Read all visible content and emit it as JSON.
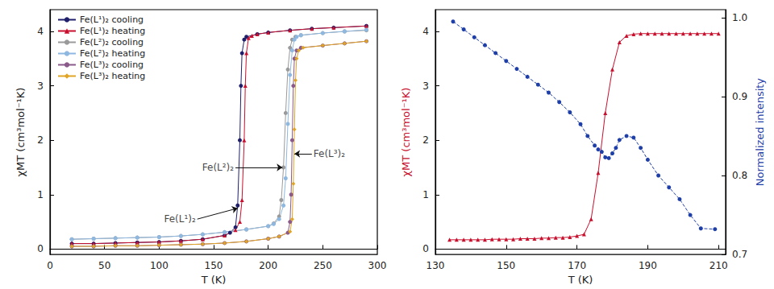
{
  "chart_data": [
    {
      "type": "line",
      "xlabel": "T (K)",
      "ylabel": "χMT (cm³mol⁻¹K)",
      "xlim": [
        0,
        300
      ],
      "xticks": [
        0,
        50,
        100,
        150,
        200,
        250,
        300
      ],
      "ylim": [
        -0.1,
        4.4
      ],
      "yticks": [
        0,
        1,
        2,
        3,
        4
      ],
      "grid": false,
      "legend": "upper left",
      "series": [
        {
          "name": "Fe(L¹)₂ cooling",
          "color": "#1f1f6b",
          "marker": "circle",
          "line_style": "solid",
          "x": [
            20,
            40,
            60,
            80,
            100,
            120,
            140,
            160,
            165,
            170,
            172,
            174,
            175,
            176,
            178,
            180,
            190,
            200,
            220,
            240,
            260,
            290
          ],
          "values": [
            0.1,
            0.1,
            0.11,
            0.12,
            0.13,
            0.15,
            0.18,
            0.25,
            0.3,
            0.4,
            0.8,
            2.0,
            3.0,
            3.6,
            3.85,
            3.9,
            3.95,
            3.98,
            4.02,
            4.05,
            4.07,
            4.1
          ]
        },
        {
          "name": "Fe(L¹)₂ heating",
          "color": "#c8102e",
          "marker": "triangle",
          "line_style": "solid",
          "x": [
            20,
            40,
            60,
            80,
            100,
            120,
            140,
            160,
            170,
            174,
            176,
            178,
            179,
            180,
            182,
            185,
            190,
            200,
            220,
            240,
            260,
            290
          ],
          "values": [
            0.1,
            0.1,
            0.11,
            0.12,
            0.13,
            0.15,
            0.18,
            0.25,
            0.35,
            0.5,
            0.9,
            2.0,
            3.0,
            3.6,
            3.88,
            3.92,
            3.95,
            3.98,
            4.02,
            4.05,
            4.07,
            4.1
          ]
        },
        {
          "name": "Fe(L²)₂ cooling",
          "color": "#9a9a9a",
          "marker": "circle",
          "line_style": "solid",
          "x": [
            20,
            40,
            60,
            80,
            100,
            120,
            140,
            160,
            180,
            200,
            205,
            210,
            212,
            214,
            216,
            218,
            220,
            222,
            225,
            230,
            250,
            270,
            290
          ],
          "values": [
            0.18,
            0.19,
            0.2,
            0.21,
            0.22,
            0.24,
            0.27,
            0.31,
            0.36,
            0.42,
            0.47,
            0.6,
            0.9,
            1.5,
            2.5,
            3.3,
            3.7,
            3.85,
            3.9,
            3.93,
            3.97,
            4.0,
            4.02
          ]
        },
        {
          "name": "Fe(L²)₂ heating",
          "color": "#8fb8e0",
          "marker": "circle",
          "line_style": "solid",
          "x": [
            20,
            40,
            60,
            80,
            100,
            120,
            140,
            160,
            180,
            200,
            205,
            210,
            214,
            216,
            218,
            220,
            222,
            224,
            226,
            230,
            250,
            270,
            290
          ],
          "values": [
            0.18,
            0.19,
            0.2,
            0.21,
            0.22,
            0.24,
            0.27,
            0.31,
            0.36,
            0.42,
            0.46,
            0.55,
            0.8,
            1.3,
            2.3,
            3.2,
            3.65,
            3.85,
            3.9,
            3.93,
            3.97,
            4.0,
            4.03
          ]
        },
        {
          "name": "Fe(L³)₂ cooling",
          "color": "#8a5a8a",
          "marker": "circle",
          "line_style": "solid",
          "x": [
            20,
            40,
            60,
            80,
            100,
            120,
            140,
            160,
            180,
            200,
            210,
            218,
            220,
            221,
            222,
            223,
            224,
            226,
            230,
            250,
            270,
            290
          ],
          "values": [
            0.05,
            0.05,
            0.06,
            0.06,
            0.07,
            0.08,
            0.09,
            0.11,
            0.14,
            0.19,
            0.23,
            0.3,
            0.5,
            1.0,
            2.0,
            3.0,
            3.5,
            3.65,
            3.7,
            3.74,
            3.78,
            3.82
          ]
        },
        {
          "name": "Fe(L³)₂ heating",
          "color": "#e0a526",
          "marker": "diamond",
          "line_style": "solid",
          "x": [
            20,
            40,
            60,
            80,
            100,
            120,
            140,
            160,
            180,
            200,
            210,
            220,
            222,
            223,
            224,
            225,
            226,
            228,
            232,
            250,
            270,
            290
          ],
          "values": [
            0.05,
            0.05,
            0.06,
            0.06,
            0.07,
            0.08,
            0.09,
            0.11,
            0.14,
            0.19,
            0.23,
            0.32,
            0.55,
            1.2,
            2.2,
            3.1,
            3.5,
            3.65,
            3.7,
            3.74,
            3.78,
            3.82
          ]
        }
      ],
      "annotations": [
        {
          "text": "Fe(L¹)₂",
          "x": 135,
          "y": 0.55,
          "arrow_x": 172,
          "arrow_y": 0.75
        },
        {
          "text": "Fe(L²)₂",
          "x": 170,
          "y": 1.5,
          "arrow_x": 213,
          "arrow_y": 1.5
        },
        {
          "text": "Fe(L³)₂",
          "x": 240,
          "y": 1.75,
          "arrow_x": 224,
          "arrow_y": 1.75
        }
      ]
    },
    {
      "type": "line",
      "xlabel": "T (K)",
      "ylabel": "χMT (cm³mol⁻¹K)",
      "y2label": "Normalized intensity",
      "xlim": [
        130,
        212
      ],
      "xticks": [
        130,
        150,
        170,
        190,
        210
      ],
      "ylim": [
        -0.1,
        4.4
      ],
      "yticks": [
        0,
        1,
        2,
        3,
        4
      ],
      "y2lim": [
        0.7,
        1.01
      ],
      "y2ticks": [
        0.7,
        0.8,
        0.9,
        {
          "value": 1,
          "label": "1.0"
        }
      ],
      "grid": false,
      "series": [
        {
          "color": "#c8102e",
          "marker": "triangle",
          "line_style": "solid",
          "axis": "y",
          "x": [
            134,
            136,
            138,
            140,
            142,
            144,
            146,
            148,
            150,
            152,
            154,
            156,
            158,
            160,
            162,
            164,
            166,
            168,
            170,
            172,
            174,
            176,
            178,
            180,
            182,
            184,
            186,
            188,
            190,
            192,
            194,
            196,
            198,
            200,
            202,
            204,
            206,
            208,
            210
          ],
          "values": [
            0.17,
            0.17,
            0.17,
            0.17,
            0.17,
            0.17,
            0.18,
            0.18,
            0.18,
            0.18,
            0.19,
            0.19,
            0.19,
            0.2,
            0.2,
            0.21,
            0.21,
            0.22,
            0.24,
            0.27,
            0.55,
            1.4,
            2.5,
            3.3,
            3.8,
            3.92,
            3.95,
            3.96,
            3.96,
            3.96,
            3.96,
            3.96,
            3.96,
            3.96,
            3.96,
            3.96,
            3.96,
            3.96,
            3.96
          ]
        },
        {
          "color": "#1f3fa8",
          "marker": "circle",
          "line_style": "dashed",
          "axis": "y2",
          "x": [
            135,
            138,
            141,
            144,
            147,
            150,
            153,
            156,
            159,
            162,
            165,
            168,
            171,
            173,
            175,
            176,
            177,
            178,
            179,
            180,
            181,
            182,
            184,
            186,
            188,
            190,
            193,
            196,
            199,
            202,
            205,
            209
          ],
          "values": [
            0.995,
            0.985,
            0.975,
            0.965,
            0.955,
            0.945,
            0.935,
            0.925,
            0.915,
            0.905,
            0.893,
            0.88,
            0.865,
            0.85,
            0.838,
            0.833,
            0.83,
            0.823,
            0.822,
            0.828,
            0.835,
            0.845,
            0.85,
            0.848,
            0.835,
            0.82,
            0.8,
            0.785,
            0.77,
            0.75,
            0.733,
            0.732
          ]
        }
      ]
    }
  ]
}
